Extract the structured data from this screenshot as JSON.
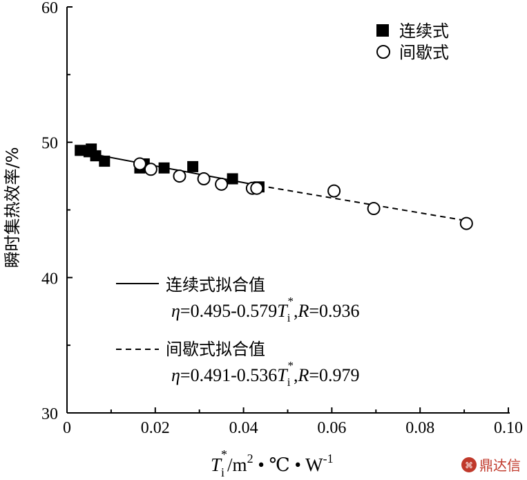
{
  "chart_data": {
    "type": "scatter",
    "xlabel": {
      "T": "T",
      "i": "i",
      "star": "*",
      "unit1": "/m",
      "two": "2",
      "unit2": " • ℃ • W",
      "minus1": "-1"
    },
    "ylabel": "瞬时集热效率/%",
    "xlim": [
      0,
      0.1
    ],
    "ylim": [
      30,
      60
    ],
    "x_ticks": [
      0,
      0.02,
      0.04,
      0.06,
      0.08,
      0.1
    ],
    "x_tick_labels": [
      "0",
      "0.02",
      "0.04",
      "0.06",
      "0.08",
      "0.10"
    ],
    "y_ticks": [
      30,
      40,
      50,
      60
    ],
    "y_tick_labels": [
      "30",
      "40",
      "50",
      "60"
    ],
    "legend_position": "top-right",
    "series": [
      {
        "name": "连续式",
        "marker": "filled-square",
        "color": "#000000",
        "points": [
          [
            0.003,
            49.4
          ],
          [
            0.005,
            49.3
          ],
          [
            0.0055,
            49.5
          ],
          [
            0.0065,
            49.0
          ],
          [
            0.0085,
            48.6
          ],
          [
            0.0165,
            48.1
          ],
          [
            0.0175,
            48.4
          ],
          [
            0.022,
            48.1
          ],
          [
            0.0285,
            48.2
          ],
          [
            0.0375,
            47.3
          ],
          [
            0.0435,
            46.7
          ]
        ]
      },
      {
        "name": "间歇式",
        "marker": "open-circle",
        "color": "#000000",
        "points": [
          [
            0.0165,
            48.4
          ],
          [
            0.019,
            48.0
          ],
          [
            0.0255,
            47.5
          ],
          [
            0.031,
            47.3
          ],
          [
            0.035,
            46.9
          ],
          [
            0.042,
            46.6
          ],
          [
            0.043,
            46.6
          ],
          [
            0.0605,
            46.4
          ],
          [
            0.0695,
            45.1
          ],
          [
            0.0905,
            44.0
          ]
        ]
      }
    ],
    "fits": [
      {
        "name": "连续式拟合值",
        "line_style": "solid",
        "x_range": [
          0.003,
          0.0435
        ],
        "y_range": [
          49.3,
          46.8
        ],
        "eq": {
          "eta": "η",
          "body": "=0.495-0.579",
          "T": "T",
          "i": "i",
          "star": "*",
          "tail": ",",
          "R": "R",
          "rval": "=0.936"
        }
      },
      {
        "name": "间歇式拟合值",
        "line_style": "dashed",
        "x_range": [
          0.0435,
          0.0905
        ],
        "y_range": [
          46.8,
          44.2
        ],
        "eq": {
          "eta": "η",
          "body": "=0.491-0.536",
          "T": "T",
          "i": "i",
          "star": "*",
          "tail": ",",
          "R": "R",
          "rval": "=0.979"
        }
      }
    ]
  },
  "watermark": {
    "text": "鼎达信",
    "color": "#c0392b"
  }
}
